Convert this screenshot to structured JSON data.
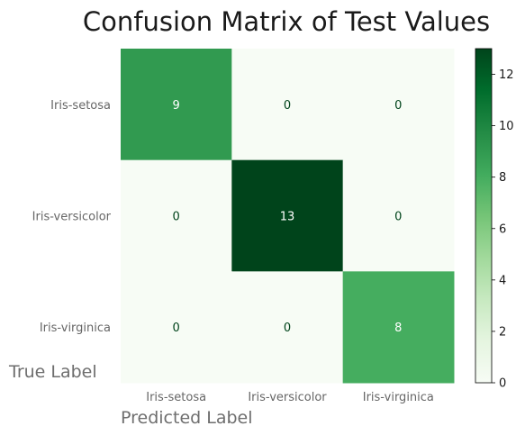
{
  "chart_data": {
    "type": "heatmap",
    "title": "Confusion Matrix of Test Values",
    "xlabel": "Predicted Label",
    "ylabel": "True Label",
    "x_categories": [
      "Iris-setosa",
      "Iris-versicolor",
      "Iris-virginica"
    ],
    "y_categories": [
      "Iris-setosa",
      "Iris-versicolor",
      "Iris-virginica"
    ],
    "values": [
      [
        9,
        0,
        0
      ],
      [
        0,
        13,
        0
      ],
      [
        0,
        0,
        8
      ]
    ],
    "colorbar": {
      "range": [
        0,
        13
      ],
      "ticks": [
        "0",
        "2",
        "4",
        "6",
        "8",
        "10",
        "12"
      ],
      "colormap": "Greens",
      "low_color": "#f7fcf5",
      "high_color": "#00441b"
    },
    "grid": false,
    "legend": "colorbar-right"
  }
}
